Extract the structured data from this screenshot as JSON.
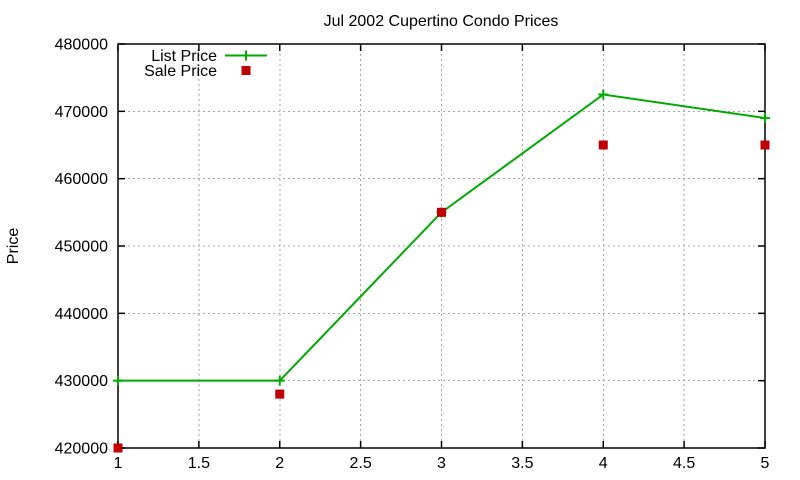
{
  "window": {
    "background_color": "#ffffff",
    "text_color": "#000000"
  },
  "chart_data": {
    "type": "line",
    "title": "Jul 2002 Cupertino Condo Prices",
    "xlabel": "",
    "ylabel": "Price",
    "x": [
      1,
      2,
      3,
      4,
      5
    ],
    "series": [
      {
        "name": "List Price",
        "color": "#00aa00",
        "marker": "plus",
        "line": true,
        "values": [
          430000,
          430000,
          455000,
          472500,
          469000
        ]
      },
      {
        "name": "Sale Price",
        "color": "#c00000",
        "marker": "square",
        "line": false,
        "values": [
          420000,
          428000,
          455000,
          465000,
          465000
        ]
      }
    ],
    "xlim": [
      1,
      5
    ],
    "ylim": [
      420000,
      480000
    ],
    "xticks": [
      1,
      1.5,
      2,
      2.5,
      3,
      3.5,
      4,
      4.5,
      5
    ],
    "xtick_labels": [
      "1",
      "1.5",
      "2",
      "2.5",
      "3",
      "3.5",
      "4",
      "4.5",
      "5"
    ],
    "yticks": [
      420000,
      430000,
      440000,
      450000,
      460000,
      470000,
      480000
    ],
    "ytick_labels": [
      "420000",
      "430000",
      "440000",
      "450000",
      "460000",
      "470000",
      "480000"
    ],
    "grid": true,
    "grid_color": "#a4a4a4",
    "axis_color": "#000000",
    "legend_position": "top-left-inside"
  }
}
